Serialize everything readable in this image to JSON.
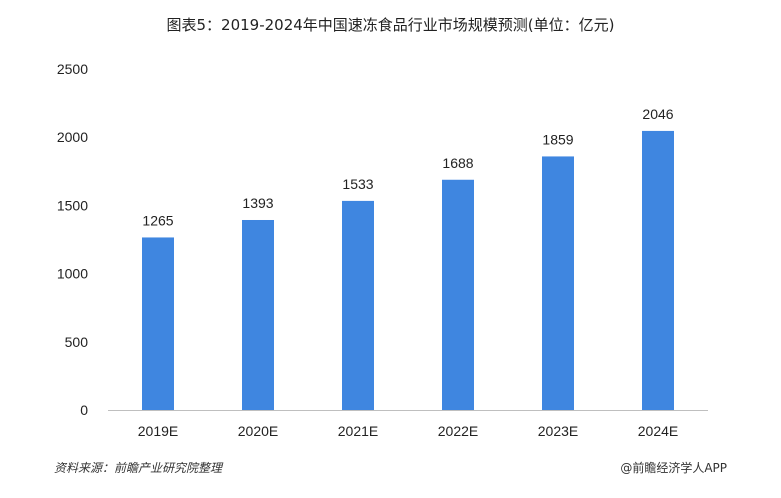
{
  "header": {
    "title": "图表5：2019-2024年中国速冻食品行业市场规模预测(单位：亿元)"
  },
  "footer": {
    "source": "资料来源：前瞻产业研究院整理",
    "credit": "@前瞻经济学人APP"
  },
  "colors": {
    "bar": "#3f86e0",
    "axis": "#bfbfbf"
  },
  "chart_data": {
    "type": "bar",
    "title": "图表5：2019-2024年中国速冻食品行业市场规模预测(单位：亿元)",
    "categories": [
      "2019E",
      "2020E",
      "2021E",
      "2022E",
      "2023E",
      "2024E"
    ],
    "values": [
      1265,
      1393,
      1533,
      1688,
      1859,
      2046
    ],
    "yticks": [
      "0",
      "500",
      "1000",
      "1500",
      "2000",
      "2500"
    ],
    "ylim": [
      0,
      2500
    ],
    "xlabel": "",
    "ylabel": "",
    "grid": false,
    "data_labels": true,
    "legend": "none"
  }
}
